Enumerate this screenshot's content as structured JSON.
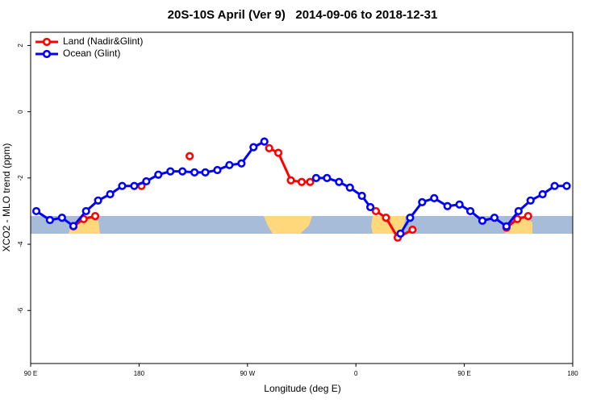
{
  "chart_data": {
    "type": "line",
    "title": "20S-10S April (Ver 9)   2014-09-06 to 2018-12-31",
    "xlabel": "Longitude (deg E)",
    "ylabel": "XCO2 - MLO trend (ppm)",
    "xlim": [
      90,
      540
    ],
    "xticks": [
      {
        "value": 90,
        "label": "90 E"
      },
      {
        "value": 180,
        "label": "180"
      },
      {
        "value": 270,
        "label": "90 W"
      },
      {
        "value": 360,
        "label": "0"
      },
      {
        "value": 450,
        "label": "90 E"
      },
      {
        "value": 540,
        "label": "180"
      }
    ],
    "ylim": [
      -7.6,
      2.4
    ],
    "yticks": [
      -6,
      -4,
      -2,
      0,
      2
    ],
    "legend": "top-left",
    "series": [
      {
        "name": "Land (Nadir&Glint)",
        "color": "#ff0000",
        "x": [
          125.5,
          134,
          143.6,
          null,
          182,
          null,
          222,
          null,
          288,
          295.6,
          306,
          315,
          322,
          null,
          376.6,
          385,
          394.7,
          407,
          null,
          485,
          494,
          503
        ],
        "values": [
          -3.46,
          -3.24,
          -3.15,
          null,
          -2.24,
          null,
          -1.34,
          null,
          -1.1,
          -1.24,
          -2.07,
          -2.12,
          -2.12,
          null,
          -3.0,
          -3.2,
          -3.8,
          -3.56,
          null,
          -3.5,
          -3.24,
          -3.15
        ]
      },
      {
        "name": "Ocean (Glint)",
        "color": "#0000ff",
        "x": [
          94.7,
          106,
          116,
          125.5,
          136,
          146,
          156,
          166,
          176,
          186,
          196,
          206,
          216,
          226,
          235,
          245,
          255,
          265,
          275,
          284,
          null,
          327,
          336,
          346,
          355,
          365,
          372,
          null,
          397,
          405,
          415,
          425,
          436,
          446,
          455,
          465,
          475,
          485,
          495,
          505,
          515,
          525,
          535
        ],
        "values": [
          -3.0,
          -3.27,
          -3.2,
          -3.45,
          -3.0,
          -2.68,
          -2.49,
          -2.24,
          -2.24,
          -2.1,
          -1.9,
          -1.8,
          -1.8,
          -1.83,
          -1.83,
          -1.76,
          -1.61,
          -1.56,
          -1.07,
          -0.9,
          null,
          -2.0,
          -2.0,
          -2.12,
          -2.29,
          -2.54,
          -2.88,
          null,
          -3.68,
          -3.2,
          -2.73,
          -2.61,
          -2.85,
          -2.8,
          -3.0,
          -3.29,
          -3.2,
          -3.46,
          -3.0,
          -2.68,
          -2.49,
          -2.24,
          -2.24
        ]
      }
    ]
  }
}
